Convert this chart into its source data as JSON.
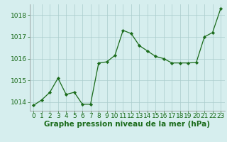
{
  "x": [
    0,
    1,
    2,
    3,
    4,
    5,
    6,
    7,
    8,
    9,
    10,
    11,
    12,
    13,
    14,
    15,
    16,
    17,
    18,
    19,
    20,
    21,
    22,
    23
  ],
  "y": [
    1013.85,
    1014.1,
    1014.45,
    1015.1,
    1014.35,
    1014.45,
    1013.9,
    1013.9,
    1015.8,
    1015.85,
    1016.15,
    1017.3,
    1017.15,
    1016.6,
    1016.35,
    1016.1,
    1016.0,
    1015.8,
    1015.8,
    1015.8,
    1015.82,
    1017.0,
    1017.2,
    1018.3
  ],
  "ylim": [
    1013.6,
    1018.5
  ],
  "yticks": [
    1014,
    1015,
    1016,
    1017,
    1018
  ],
  "xticks": [
    0,
    1,
    2,
    3,
    4,
    5,
    6,
    7,
    8,
    9,
    10,
    11,
    12,
    13,
    14,
    15,
    16,
    17,
    18,
    19,
    20,
    21,
    22,
    23
  ],
  "line_color": "#1a6b1a",
  "marker_color": "#1a6b1a",
  "bg_color": "#d6eeee",
  "grid_color": "#aacccc",
  "xlabel": "Graphe pression niveau de la mer (hPa)",
  "xlabel_color": "#1a6b1a",
  "xlabel_fontsize": 7.5,
  "tick_fontsize": 6.5,
  "ytick_color": "#1a6b1a",
  "xtick_color": "#1a6b1a",
  "spine_color": "#888888"
}
